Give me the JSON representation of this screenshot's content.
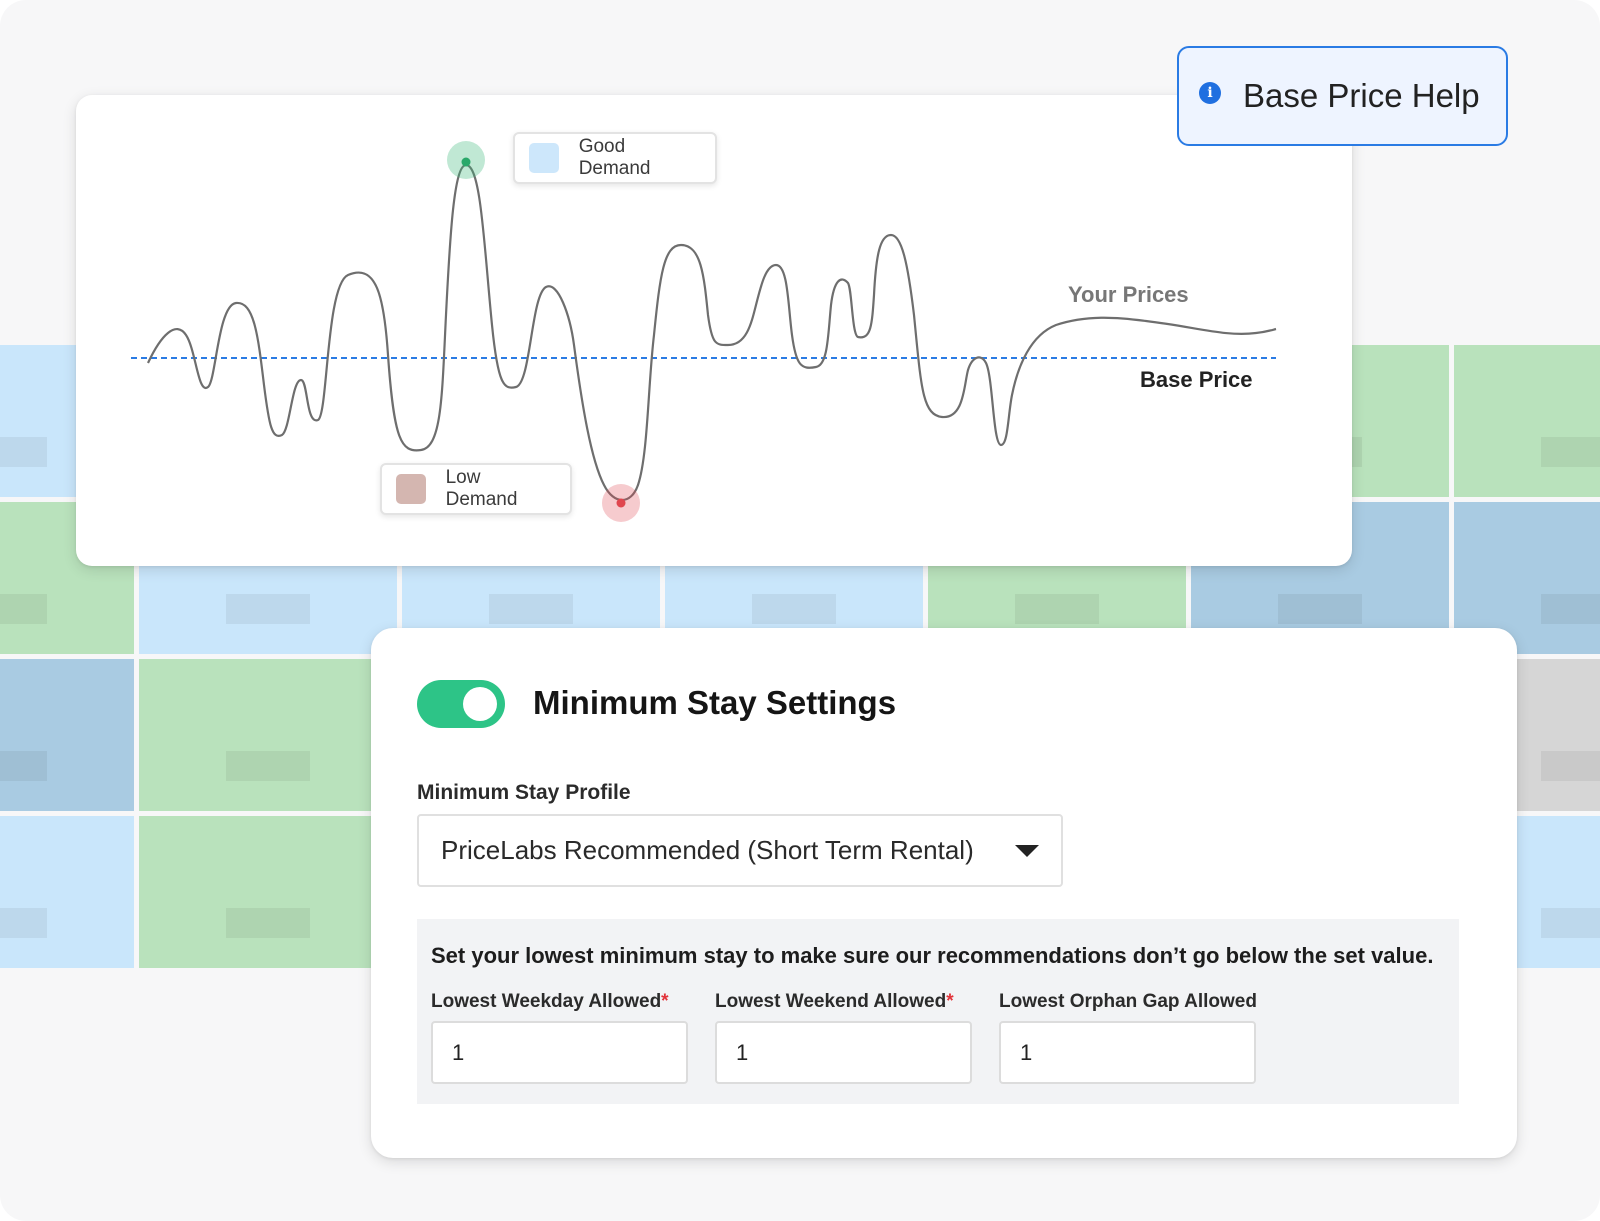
{
  "help_button": {
    "label": "Base Price Help",
    "icon": "info-icon"
  },
  "chart": {
    "legend_good": "Good Demand",
    "legend_low": "Low Demand",
    "line_label": "Your Prices",
    "baseline_label": "Base Price",
    "colors": {
      "price_line": "#6e6e6e",
      "base_line": "#2a7be4",
      "good_swatch": "#cde7fb",
      "low_swatch": "#d4b6b0",
      "peak_marker": "#3cb878",
      "trough_marker": "#e0464e"
    }
  },
  "settings": {
    "toggle_on": true,
    "toggle_color": "#2dc487",
    "title": "Minimum Stay Settings",
    "profile_label": "Minimum Stay Profile",
    "profile_value": "PriceLabs Recommended (Short Term Rental)",
    "description": "Set your lowest minimum stay to make sure our recommendations don’t go below the set value.",
    "fields": [
      {
        "label": "Lowest Weekday Allowed",
        "required": "*",
        "value": "1"
      },
      {
        "label": "Lowest Weekend Allowed",
        "required": "*",
        "value": "1"
      },
      {
        "label": "Lowest Orphan Gap Allowed",
        "required": "",
        "value": "1"
      }
    ]
  },
  "calendar_colors": {
    "light_blue": "#c9e6fb",
    "green": "#b9e2bc",
    "dark_blue": "#a9cbe2",
    "gray": "#d6d6d6"
  }
}
